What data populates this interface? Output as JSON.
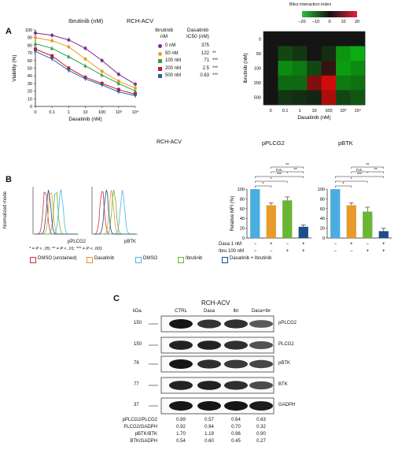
{
  "panels": {
    "a": "A",
    "b": "B",
    "c": "C"
  },
  "panelA": {
    "title_left": "Ibrutinib (nM)",
    "title_right": "RCH-ACV",
    "legend": {
      "col1_header": [
        "Ibrutinib",
        "nM"
      ],
      "col2_header": [
        "Dasatinib",
        "IC50 (nM)"
      ],
      "rows": [
        {
          "ibr": "0 nM",
          "ic50": "375",
          "sig": "",
          "color": "#7b2d8b",
          "marker": "circle"
        },
        {
          "ibr": "50 nM",
          "ic50": "122",
          "sig": "**",
          "color": "#e8a020",
          "marker": "circle"
        },
        {
          "ibr": "100 nM",
          "ic50": "71",
          "sig": "***",
          "color": "#2ea043",
          "marker": "triangle"
        },
        {
          "ibr": "200 nM",
          "ic50": "2.5",
          "sig": "***",
          "color": "#c0182b",
          "marker": "square"
        },
        {
          "ibr": "500 nM",
          "ic50": "0.63",
          "sig": "***",
          "color": "#2b5fa8",
          "marker": "tri-down"
        }
      ]
    },
    "heatmap_legend": {
      "title": "Bliss interaction index",
      "ticks": [
        "−20",
        "−10",
        "0",
        "10",
        "20"
      ]
    }
  },
  "panelB": {
    "flow_xlabels": [
      "pPLCG2",
      "pBTK"
    ],
    "flow_ylabel": "Normalized mode",
    "pvalue_note": "* = P < .05; ** = P < .01; *** = P < .001",
    "flow_legend": [
      {
        "label": "DMSO (unstained)",
        "color": "#d0303a"
      },
      {
        "label": "Dasatinib",
        "color": "#e89a2a"
      },
      {
        "label": "DMSO",
        "color": "#4fb3e0"
      },
      {
        "label": "Ibrutinib",
        "color": "#6bb534"
      },
      {
        "label": "Dasatinib + Ibrutinib",
        "color": "#1c4e8a"
      }
    ],
    "treatment_labels": [
      "Dasa 1 nM",
      "Ibru 100 nM"
    ],
    "dasa_signs": [
      "−",
      "+",
      "−",
      "+"
    ],
    "ibru_signs": [
      "−",
      "−",
      "+",
      "+"
    ],
    "sig_labels": {
      "ns": "n.s.",
      "one": "*",
      "two": "**",
      "three": "***"
    }
  },
  "panelC": {
    "title": "RCH-ACV",
    "kda_label": "kDa",
    "lanes": [
      "CTRL",
      "Dasa",
      "Ibr",
      "Dasa+Ibr"
    ],
    "blots": [
      {
        "kda": "150",
        "name": "pPLCG2"
      },
      {
        "kda": "150",
        "name": "PLCG2"
      },
      {
        "kda": "78",
        "name": "pBTK"
      },
      {
        "kda": "77",
        "name": "BTK"
      },
      {
        "kda": "37",
        "name": "GADPH"
      }
    ],
    "ratios": [
      {
        "label": "pPLCG2/PLCG2",
        "values": [
          "0.89",
          "0.57",
          "0.64",
          "0.63"
        ]
      },
      {
        "label": "PLCG2/GADPH",
        "values": [
          "0.92",
          "0.94",
          "0.70",
          "0.32"
        ]
      },
      {
        "label": "pBTK/BTK",
        "values": [
          "1.70",
          "1.19",
          "0.96",
          "0.90"
        ]
      },
      {
        "label": "BTK/GADPH",
        "values": [
          "0.54",
          "0.60",
          "0.45",
          "0.27"
        ]
      }
    ]
  },
  "chart_data": [
    {
      "type": "line",
      "xlabel": "Dasatinib (nM)",
      "ylabel": "Viability (%)",
      "x_tick_labels": [
        "0",
        "0.1",
        "1",
        "10",
        "100",
        "10³",
        "10⁴"
      ],
      "x_scale": "log",
      "x": [
        0,
        0.1,
        1,
        10,
        100,
        1000,
        10000
      ],
      "ylim": [
        0,
        100
      ],
      "y_ticks": [
        0,
        10,
        20,
        30,
        40,
        50,
        60,
        70,
        80,
        90,
        100
      ],
      "series": [
        {
          "name": "0 nM",
          "color": "#7b2d8b",
          "values": [
            96,
            93,
            87,
            76,
            60,
            42,
            29
          ]
        },
        {
          "name": "50 nM",
          "color": "#e8a020",
          "values": [
            90,
            86,
            78,
            62,
            46,
            33,
            24
          ]
        },
        {
          "name": "100 nM",
          "color": "#2ea043",
          "values": [
            82,
            76,
            65,
            53,
            41,
            30,
            20
          ]
        },
        {
          "name": "200 nM",
          "color": "#c0182b",
          "values": [
            75,
            66,
            50,
            38,
            30,
            22,
            16
          ]
        },
        {
          "name": "500 nM",
          "color": "#2b5fa8",
          "values": [
            72,
            62,
            47,
            36,
            28,
            19,
            14
          ]
        }
      ]
    },
    {
      "type": "heatmap",
      "xlabel": "Dasatinib (nM)",
      "ylabel": "Ibrutinib (nM)",
      "x_tick_labels": [
        "0",
        "0.1",
        "1",
        "10",
        "100",
        "10³",
        "10⁴"
      ],
      "y_tick_labels": [
        "0",
        "50",
        "100",
        "200",
        "500"
      ],
      "values": [
        [
          0,
          0,
          0,
          0,
          0,
          0,
          0
        ],
        [
          0,
          -6,
          -4,
          0,
          -3,
          -15,
          -18
        ],
        [
          0,
          -14,
          -12,
          -6,
          3,
          -16,
          -14
        ],
        [
          0,
          -10,
          -10,
          10,
          17,
          -12,
          -11
        ],
        [
          0,
          -4,
          -3,
          -2,
          14,
          -6,
          -8
        ]
      ],
      "zlim": [
        -20,
        20
      ]
    },
    {
      "type": "bar",
      "title": "pPLCG2",
      "ylabel": "Relative MFI (%)",
      "ylim": [
        0,
        100
      ],
      "y_ticks": [
        0,
        20,
        40,
        60,
        80,
        100
      ],
      "values": [
        100,
        67,
        77,
        23
      ],
      "errors": [
        0,
        5,
        7,
        4
      ],
      "colors": [
        "#4aade0",
        "#e89a2a",
        "#6bb534",
        "#1c4e8a"
      ]
    },
    {
      "type": "bar",
      "title": "pBTK",
      "ylim": [
        0,
        100
      ],
      "y_ticks": [
        0,
        20,
        40,
        60,
        80,
        100
      ],
      "values": [
        100,
        67,
        54,
        14
      ],
      "errors": [
        0,
        5,
        9,
        6
      ],
      "colors": [
        "#4aade0",
        "#e89a2a",
        "#6bb534",
        "#1c4e8a"
      ]
    }
  ]
}
